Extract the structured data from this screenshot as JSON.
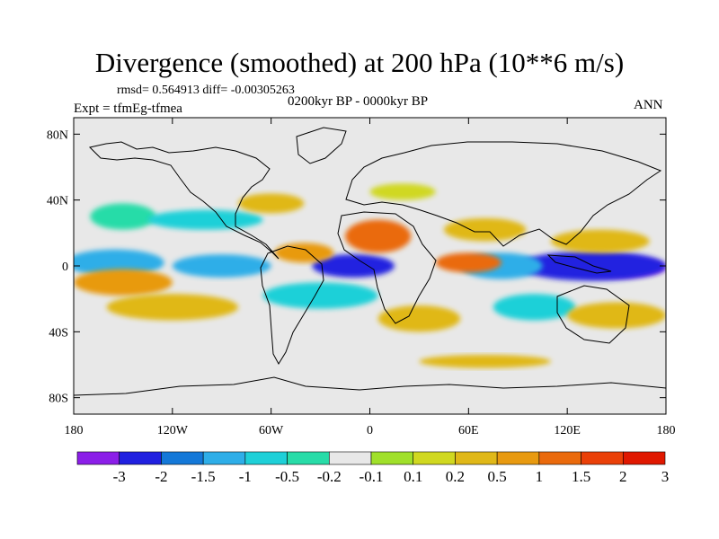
{
  "chart_data": {
    "type": "heatmap",
    "title": "Divergence (smoothed) at 200 hPa (10**6 m/s)",
    "stats_line": "rmsd= 0.564913 diff= -0.00305263",
    "left_label": "Expt = tfmEg-tfmea",
    "center_label": "0200kyr BP - 0000kyr BP",
    "right_label": "ANN",
    "x_range": [
      -180,
      180
    ],
    "y_range": [
      -90,
      90
    ],
    "x_ticks": [
      {
        "value": -180,
        "label": "180"
      },
      {
        "value": -120,
        "label": "120W"
      },
      {
        "value": -60,
        "label": "60W"
      },
      {
        "value": 0,
        "label": "0"
      },
      {
        "value": 60,
        "label": "60E"
      },
      {
        "value": 120,
        "label": "120E"
      },
      {
        "value": 180,
        "label": "180"
      }
    ],
    "y_ticks": [
      {
        "value": 80,
        "label": "80N"
      },
      {
        "value": 40,
        "label": "40N"
      },
      {
        "value": 0,
        "label": "0"
      },
      {
        "value": -40,
        "label": "40S"
      },
      {
        "value": -80,
        "label": "80S"
      }
    ],
    "colorbar": {
      "colors": [
        "#8b1ee8",
        "#2020e0",
        "#1478d8",
        "#2eaee8",
        "#1ed0d8",
        "#28dca8",
        "#e8e8e8",
        "#a0e02a",
        "#d0d820",
        "#e0b818",
        "#e89a10",
        "#ea6a0c",
        "#ea4008",
        "#e01800"
      ],
      "labels": [
        "-3",
        "-2",
        "-1.5",
        "-1",
        "-0.5",
        "-0.2",
        "-0.1",
        "0.1",
        "0.2",
        "0.5",
        "1",
        "1.5",
        "2",
        "3"
      ]
    },
    "anomaly_features": [
      {
        "lon": -10,
        "lat": 0,
        "rx": 25,
        "ry": 7,
        "level": 1
      },
      {
        "lon": 150,
        "lat": -1,
        "rx": 30,
        "ry": 6,
        "level": 0
      },
      {
        "lon": 135,
        "lat": 0,
        "rx": 45,
        "ry": 9,
        "level": 1
      },
      {
        "lon": -155,
        "lat": 2,
        "rx": 30,
        "ry": 8,
        "level": 3
      },
      {
        "lon": -90,
        "lat": 0,
        "rx": 30,
        "ry": 7,
        "level": 3
      },
      {
        "lon": 80,
        "lat": 0,
        "rx": 25,
        "ry": 8,
        "level": 3
      },
      {
        "lon": -150,
        "lat": -10,
        "rx": 30,
        "ry": 8,
        "level": 10
      },
      {
        "lon": -40,
        "lat": 8,
        "rx": 18,
        "ry": 6,
        "level": 10
      },
      {
        "lon": 5,
        "lat": 18,
        "rx": 20,
        "ry": 10,
        "level": 11
      },
      {
        "lon": 60,
        "lat": 2,
        "rx": 20,
        "ry": 6,
        "level": 11
      },
      {
        "lon": 70,
        "lat": 22,
        "rx": 25,
        "ry": 7,
        "level": 9
      },
      {
        "lon": 140,
        "lat": 15,
        "rx": 30,
        "ry": 7,
        "level": 9
      },
      {
        "lon": -150,
        "lat": 30,
        "rx": 20,
        "ry": 8,
        "level": 5
      },
      {
        "lon": -100,
        "lat": 28,
        "rx": 35,
        "ry": 6,
        "level": 4
      },
      {
        "lon": -30,
        "lat": -18,
        "rx": 35,
        "ry": 8,
        "level": 4
      },
      {
        "lon": 100,
        "lat": -25,
        "rx": 25,
        "ry": 8,
        "level": 4
      },
      {
        "lon": -120,
        "lat": -25,
        "rx": 40,
        "ry": 8,
        "level": 9
      },
      {
        "lon": 150,
        "lat": -30,
        "rx": 30,
        "ry": 8,
        "level": 9
      },
      {
        "lon": 30,
        "lat": -32,
        "rx": 25,
        "ry": 8,
        "level": 9
      },
      {
        "lon": -60,
        "lat": 38,
        "rx": 20,
        "ry": 6,
        "level": 9
      },
      {
        "lon": 20,
        "lat": 45,
        "rx": 20,
        "ry": 5,
        "level": 8
      },
      {
        "lon": 70,
        "lat": -58,
        "rx": 40,
        "ry": 4,
        "level": 9
      }
    ]
  }
}
